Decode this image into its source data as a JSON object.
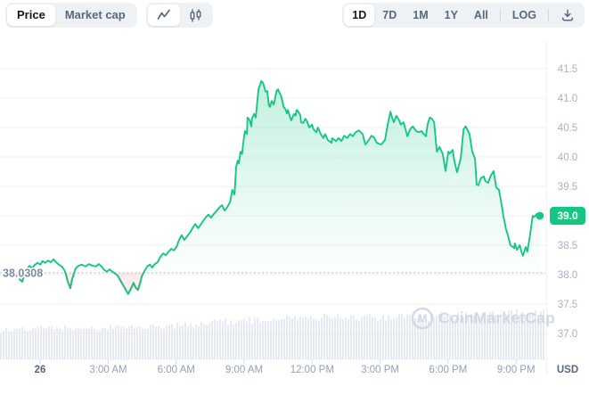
{
  "toolbar": {
    "price_label": "Price",
    "market_cap_label": "Market cap",
    "chart_types": [
      "line",
      "candlestick"
    ],
    "selected_chart_type": "line",
    "ranges": [
      "1D",
      "7D",
      "1M",
      "1Y",
      "All"
    ],
    "selected_range": "1D",
    "log_label": "LOG",
    "icons": {
      "line_chart": "line-chart-icon",
      "candlestick": "candlestick-icon",
      "download": "download-icon"
    }
  },
  "watermark": {
    "text": "CoinMarketCap",
    "icon": "coinmarketcap-logo",
    "color": "#ccd3e3"
  },
  "chart_data": {
    "type": "line",
    "title": "",
    "unit_label": "USD",
    "legend": [],
    "grid": "horizontal",
    "current_price": 39.0,
    "current_price_label": "39.0",
    "previous_close": 38.0308,
    "previous_close_label": "38.0308",
    "colors": {
      "up": "#16c784",
      "down": "#ea3943",
      "grid": "#f0f2f6",
      "axis_text": "#a6b0c3",
      "time_text": "#94a0b5",
      "strong_text": "#58667e",
      "volume_bar": "#e0e4ef",
      "baseline": "#c0c6d4",
      "badge_text": "#ffffff"
    },
    "y_axis": {
      "min": 37.0,
      "max": 41.5,
      "step": 0.5,
      "labels": [
        "41.5",
        "41.0",
        "40.5",
        "40.0",
        "39.5",
        "39.0",
        "38.5",
        "38.0",
        "37.5",
        "37.0"
      ]
    },
    "x_axis": {
      "ticks": [
        {
          "f": 0.0735,
          "label": "26",
          "strong": true
        },
        {
          "f": 0.1985,
          "label": "3:00 AM",
          "strong": false
        },
        {
          "f": 0.3231,
          "label": "6:00 AM",
          "strong": false
        },
        {
          "f": 0.4477,
          "label": "9:00 AM",
          "strong": false
        },
        {
          "f": 0.5724,
          "label": "12:00 PM",
          "strong": false
        },
        {
          "f": 0.697,
          "label": "3:00 PM",
          "strong": false
        },
        {
          "f": 0.8217,
          "label": "6:00 PM",
          "strong": false
        },
        {
          "f": 0.9463,
          "label": "9:00 PM",
          "strong": false
        }
      ]
    },
    "points": [
      [
        0.036,
        37.92
      ],
      [
        0.041,
        37.88
      ],
      [
        0.044,
        38.0
      ],
      [
        0.049,
        38.09
      ],
      [
        0.054,
        38.15
      ],
      [
        0.059,
        38.11
      ],
      [
        0.064,
        38.17
      ],
      [
        0.069,
        38.2
      ],
      [
        0.074,
        38.17
      ],
      [
        0.078,
        38.23
      ],
      [
        0.083,
        38.2
      ],
      [
        0.088,
        38.24
      ],
      [
        0.093,
        38.21
      ],
      [
        0.098,
        38.26
      ],
      [
        0.103,
        38.21
      ],
      [
        0.108,
        38.17
      ],
      [
        0.113,
        38.14
      ],
      [
        0.118,
        38.08
      ],
      [
        0.121,
        38.0
      ],
      [
        0.124,
        37.89
      ],
      [
        0.129,
        37.77
      ],
      [
        0.132,
        37.91
      ],
      [
        0.136,
        38.03
      ],
      [
        0.139,
        38.11
      ],
      [
        0.144,
        38.15
      ],
      [
        0.15,
        38.17
      ],
      [
        0.157,
        38.14
      ],
      [
        0.163,
        38.18
      ],
      [
        0.17,
        38.15
      ],
      [
        0.176,
        38.14
      ],
      [
        0.181,
        38.18
      ],
      [
        0.186,
        38.14
      ],
      [
        0.191,
        38.08
      ],
      [
        0.196,
        38.05
      ],
      [
        0.201,
        38.09
      ],
      [
        0.206,
        38.05
      ],
      [
        0.211,
        38.02
      ],
      [
        0.216,
        37.98
      ],
      [
        0.222,
        37.88
      ],
      [
        0.229,
        37.77
      ],
      [
        0.235,
        37.67
      ],
      [
        0.24,
        37.76
      ],
      [
        0.245,
        37.86
      ],
      [
        0.248,
        37.79
      ],
      [
        0.253,
        37.74
      ],
      [
        0.257,
        37.86
      ],
      [
        0.26,
        37.97
      ],
      [
        0.265,
        38.06
      ],
      [
        0.27,
        38.14
      ],
      [
        0.275,
        38.17
      ],
      [
        0.279,
        38.12
      ],
      [
        0.284,
        38.18
      ],
      [
        0.289,
        38.21
      ],
      [
        0.294,
        38.3
      ],
      [
        0.299,
        38.36
      ],
      [
        0.304,
        38.33
      ],
      [
        0.309,
        38.39
      ],
      [
        0.314,
        38.44
      ],
      [
        0.319,
        38.41
      ],
      [
        0.324,
        38.48
      ],
      [
        0.328,
        38.58
      ],
      [
        0.333,
        38.67
      ],
      [
        0.338,
        38.59
      ],
      [
        0.343,
        38.65
      ],
      [
        0.348,
        38.71
      ],
      [
        0.353,
        38.79
      ],
      [
        0.358,
        38.86
      ],
      [
        0.363,
        38.79
      ],
      [
        0.368,
        38.85
      ],
      [
        0.373,
        38.92
      ],
      [
        0.377,
        38.97
      ],
      [
        0.382,
        39.02
      ],
      [
        0.387,
        38.97
      ],
      [
        0.392,
        39.03
      ],
      [
        0.397,
        39.08
      ],
      [
        0.402,
        39.14
      ],
      [
        0.407,
        39.18
      ],
      [
        0.412,
        39.09
      ],
      [
        0.417,
        39.15
      ],
      [
        0.422,
        39.24
      ],
      [
        0.426,
        39.44
      ],
      [
        0.43,
        39.36
      ],
      [
        0.433,
        39.83
      ],
      [
        0.436,
        39.94
      ],
      [
        0.438,
        39.89
      ],
      [
        0.441,
        40.09
      ],
      [
        0.444,
        40.05
      ],
      [
        0.446,
        40.24
      ],
      [
        0.449,
        40.44
      ],
      [
        0.453,
        40.39
      ],
      [
        0.454,
        40.67
      ],
      [
        0.458,
        40.62
      ],
      [
        0.461,
        40.52
      ],
      [
        0.462,
        40.65
      ],
      [
        0.466,
        40.73
      ],
      [
        0.469,
        40.67
      ],
      [
        0.474,
        41.15
      ],
      [
        0.477,
        41.23
      ],
      [
        0.479,
        41.29
      ],
      [
        0.482,
        41.26
      ],
      [
        0.485,
        41.18
      ],
      [
        0.487,
        41.11
      ],
      [
        0.49,
        41.12
      ],
      [
        0.493,
        40.88
      ],
      [
        0.495,
        40.85
      ],
      [
        0.498,
        40.95
      ],
      [
        0.502,
        40.89
      ],
      [
        0.507,
        41.12
      ],
      [
        0.51,
        41.15
      ],
      [
        0.511,
        41.12
      ],
      [
        0.515,
        41.05
      ],
      [
        0.518,
        40.95
      ],
      [
        0.52,
        40.85
      ],
      [
        0.523,
        40.82
      ],
      [
        0.526,
        40.74
      ],
      [
        0.528,
        40.8
      ],
      [
        0.531,
        40.7
      ],
      [
        0.534,
        40.62
      ],
      [
        0.539,
        40.73
      ],
      [
        0.542,
        40.7
      ],
      [
        0.544,
        40.8
      ],
      [
        0.547,
        40.77
      ],
      [
        0.551,
        40.7
      ],
      [
        0.552,
        40.59
      ],
      [
        0.556,
        40.58
      ],
      [
        0.56,
        40.65
      ],
      [
        0.564,
        40.58
      ],
      [
        0.567,
        40.5
      ],
      [
        0.572,
        40.55
      ],
      [
        0.575,
        40.47
      ],
      [
        0.58,
        40.42
      ],
      [
        0.583,
        40.5
      ],
      [
        0.588,
        40.39
      ],
      [
        0.593,
        40.32
      ],
      [
        0.596,
        40.39
      ],
      [
        0.601,
        40.29
      ],
      [
        0.608,
        40.24
      ],
      [
        0.609,
        40.32
      ],
      [
        0.616,
        40.27
      ],
      [
        0.621,
        40.32
      ],
      [
        0.626,
        40.27
      ],
      [
        0.631,
        40.36
      ],
      [
        0.637,
        40.32
      ],
      [
        0.642,
        40.39
      ],
      [
        0.647,
        40.35
      ],
      [
        0.652,
        40.42
      ],
      [
        0.658,
        40.45
      ],
      [
        0.665,
        40.39
      ],
      [
        0.67,
        40.21
      ],
      [
        0.675,
        40.27
      ],
      [
        0.681,
        40.36
      ],
      [
        0.686,
        40.33
      ],
      [
        0.691,
        40.24
      ],
      [
        0.699,
        40.21
      ],
      [
        0.706,
        40.29
      ],
      [
        0.711,
        40.55
      ],
      [
        0.716,
        40.77
      ],
      [
        0.719,
        40.67
      ],
      [
        0.722,
        40.59
      ],
      [
        0.727,
        40.7
      ],
      [
        0.732,
        40.62
      ],
      [
        0.735,
        40.55
      ],
      [
        0.74,
        40.59
      ],
      [
        0.747,
        40.35
      ],
      [
        0.752,
        40.47
      ],
      [
        0.757,
        40.52
      ],
      [
        0.763,
        40.44
      ],
      [
        0.768,
        40.42
      ],
      [
        0.773,
        40.44
      ],
      [
        0.778,
        40.38
      ],
      [
        0.781,
        40.35
      ],
      [
        0.784,
        40.55
      ],
      [
        0.788,
        40.67
      ],
      [
        0.792,
        40.65
      ],
      [
        0.796,
        40.59
      ],
      [
        0.801,
        40.09
      ],
      [
        0.806,
        40.17
      ],
      [
        0.812,
        40.05
      ],
      [
        0.817,
        39.76
      ],
      [
        0.822,
        40.09
      ],
      [
        0.825,
        40.06
      ],
      [
        0.83,
        40.12
      ],
      [
        0.833,
        39.94
      ],
      [
        0.838,
        39.74
      ],
      [
        0.845,
        39.98
      ],
      [
        0.85,
        40.47
      ],
      [
        0.854,
        40.52
      ],
      [
        0.861,
        40.39
      ],
      [
        0.866,
        40.09
      ],
      [
        0.871,
        39.97
      ],
      [
        0.874,
        39.53
      ],
      [
        0.877,
        39.52
      ],
      [
        0.882,
        39.64
      ],
      [
        0.887,
        39.67
      ],
      [
        0.89,
        39.59
      ],
      [
        0.895,
        39.56
      ],
      [
        0.9,
        39.68
      ],
      [
        0.905,
        39.76
      ],
      [
        0.91,
        39.48
      ],
      [
        0.915,
        39.44
      ],
      [
        0.92,
        39.18
      ],
      [
        0.923,
        39.0
      ],
      [
        0.928,
        38.77
      ],
      [
        0.931,
        38.68
      ],
      [
        0.936,
        38.5
      ],
      [
        0.943,
        38.45
      ],
      [
        0.944,
        38.53
      ],
      [
        0.948,
        38.42
      ],
      [
        0.953,
        38.5
      ],
      [
        0.956,
        38.39
      ],
      [
        0.959,
        38.32
      ],
      [
        0.964,
        38.47
      ],
      [
        0.967,
        38.39
      ],
      [
        0.972,
        38.68
      ],
      [
        0.975,
        38.88
      ],
      [
        0.977,
        39.0
      ],
      [
        0.98,
        38.98
      ],
      [
        0.984,
        39.03
      ],
      [
        0.988,
        38.95
      ],
      [
        0.99,
        39.0
      ]
    ],
    "volume_profile": [
      [
        0.0,
        34
      ],
      [
        0.08,
        36
      ],
      [
        0.17,
        37
      ],
      [
        0.27,
        38
      ],
      [
        0.33,
        39
      ],
      [
        0.4,
        43
      ],
      [
        0.47,
        46
      ],
      [
        0.53,
        48
      ],
      [
        0.6,
        49
      ],
      [
        0.67,
        48
      ],
      [
        0.73,
        48
      ],
      [
        0.8,
        49
      ],
      [
        0.85,
        50
      ],
      [
        0.9,
        51
      ],
      [
        0.94,
        53
      ],
      [
        0.97,
        56
      ],
      [
        1.0,
        56
      ]
    ]
  }
}
